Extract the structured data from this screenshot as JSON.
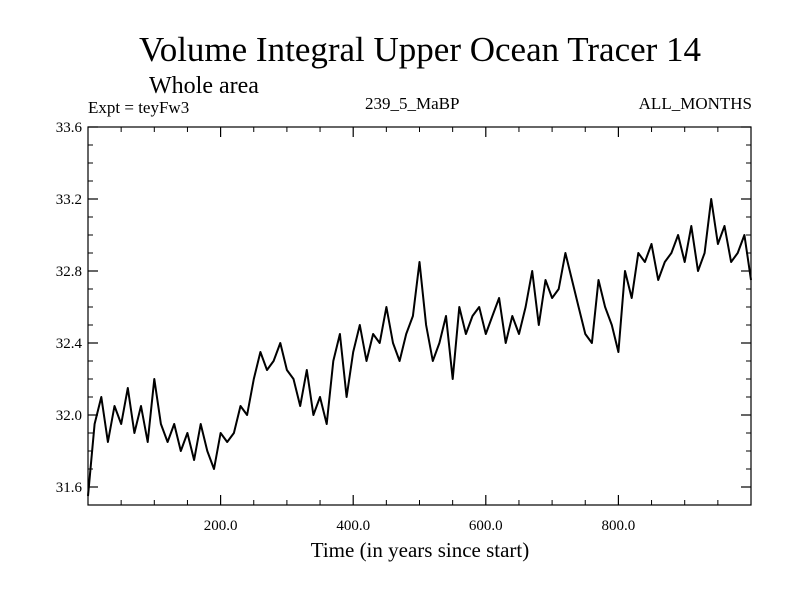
{
  "chart_data": {
    "type": "line",
    "title": "Volume Integral Upper Ocean Tracer 14",
    "subtitle": "Whole area",
    "experiment_label": "Expt = teyFw3",
    "run_label": "239_5_MaBP",
    "months_label": "ALL_MONTHS",
    "xlabel": "Time (in years since start)",
    "ylabel": "",
    "xlim": [
      0,
      1000
    ],
    "ylim": [
      31.5,
      33.6
    ],
    "xticks": [
      200,
      400,
      600,
      800
    ],
    "xtick_labels": [
      "200.0",
      "400.0",
      "600.0",
      "800.0"
    ],
    "yticks": [
      31.6,
      32.0,
      32.4,
      32.8,
      33.2,
      33.6
    ],
    "ytick_labels": [
      "31.6",
      "32.0",
      "32.4",
      "32.8",
      "33.2",
      "33.6"
    ],
    "line_color": "#000000",
    "series": [
      {
        "name": "Volume Integral Upper Ocean Tracer 14",
        "x": [
          0,
          10,
          20,
          30,
          40,
          50,
          60,
          70,
          80,
          90,
          100,
          110,
          120,
          130,
          140,
          150,
          160,
          170,
          180,
          190,
          200,
          210,
          220,
          230,
          240,
          250,
          260,
          270,
          280,
          290,
          300,
          310,
          320,
          330,
          340,
          350,
          360,
          370,
          380,
          390,
          400,
          410,
          420,
          430,
          440,
          450,
          460,
          470,
          480,
          490,
          500,
          510,
          520,
          530,
          540,
          550,
          560,
          570,
          580,
          590,
          600,
          610,
          620,
          630,
          640,
          650,
          660,
          670,
          680,
          690,
          700,
          710,
          720,
          730,
          740,
          750,
          760,
          770,
          780,
          790,
          800,
          810,
          820,
          830,
          840,
          850,
          860,
          870,
          880,
          890,
          900,
          910,
          920,
          930,
          940,
          950,
          960,
          970,
          980,
          990,
          1000
        ],
        "values": [
          31.55,
          31.95,
          32.1,
          31.85,
          32.05,
          31.95,
          32.15,
          31.9,
          32.05,
          31.85,
          32.2,
          31.95,
          31.85,
          31.95,
          31.8,
          31.9,
          31.75,
          31.95,
          31.8,
          31.7,
          31.9,
          31.85,
          31.9,
          32.05,
          32.0,
          32.2,
          32.35,
          32.25,
          32.3,
          32.4,
          32.25,
          32.2,
          32.05,
          32.25,
          32.0,
          32.1,
          31.95,
          32.3,
          32.45,
          32.1,
          32.35,
          32.5,
          32.3,
          32.45,
          32.4,
          32.6,
          32.4,
          32.3,
          32.45,
          32.55,
          32.85,
          32.5,
          32.3,
          32.4,
          32.55,
          32.2,
          32.6,
          32.45,
          32.55,
          32.6,
          32.45,
          32.55,
          32.65,
          32.4,
          32.55,
          32.45,
          32.6,
          32.8,
          32.5,
          32.75,
          32.65,
          32.7,
          32.9,
          32.75,
          32.6,
          32.45,
          32.4,
          32.75,
          32.6,
          32.5,
          32.35,
          32.8,
          32.65,
          32.9,
          32.85,
          32.95,
          32.75,
          32.85,
          32.9,
          33.0,
          32.85,
          33.05,
          32.8,
          32.9,
          33.2,
          32.95,
          33.05,
          32.85,
          32.9,
          33.0,
          32.75
        ]
      }
    ]
  }
}
